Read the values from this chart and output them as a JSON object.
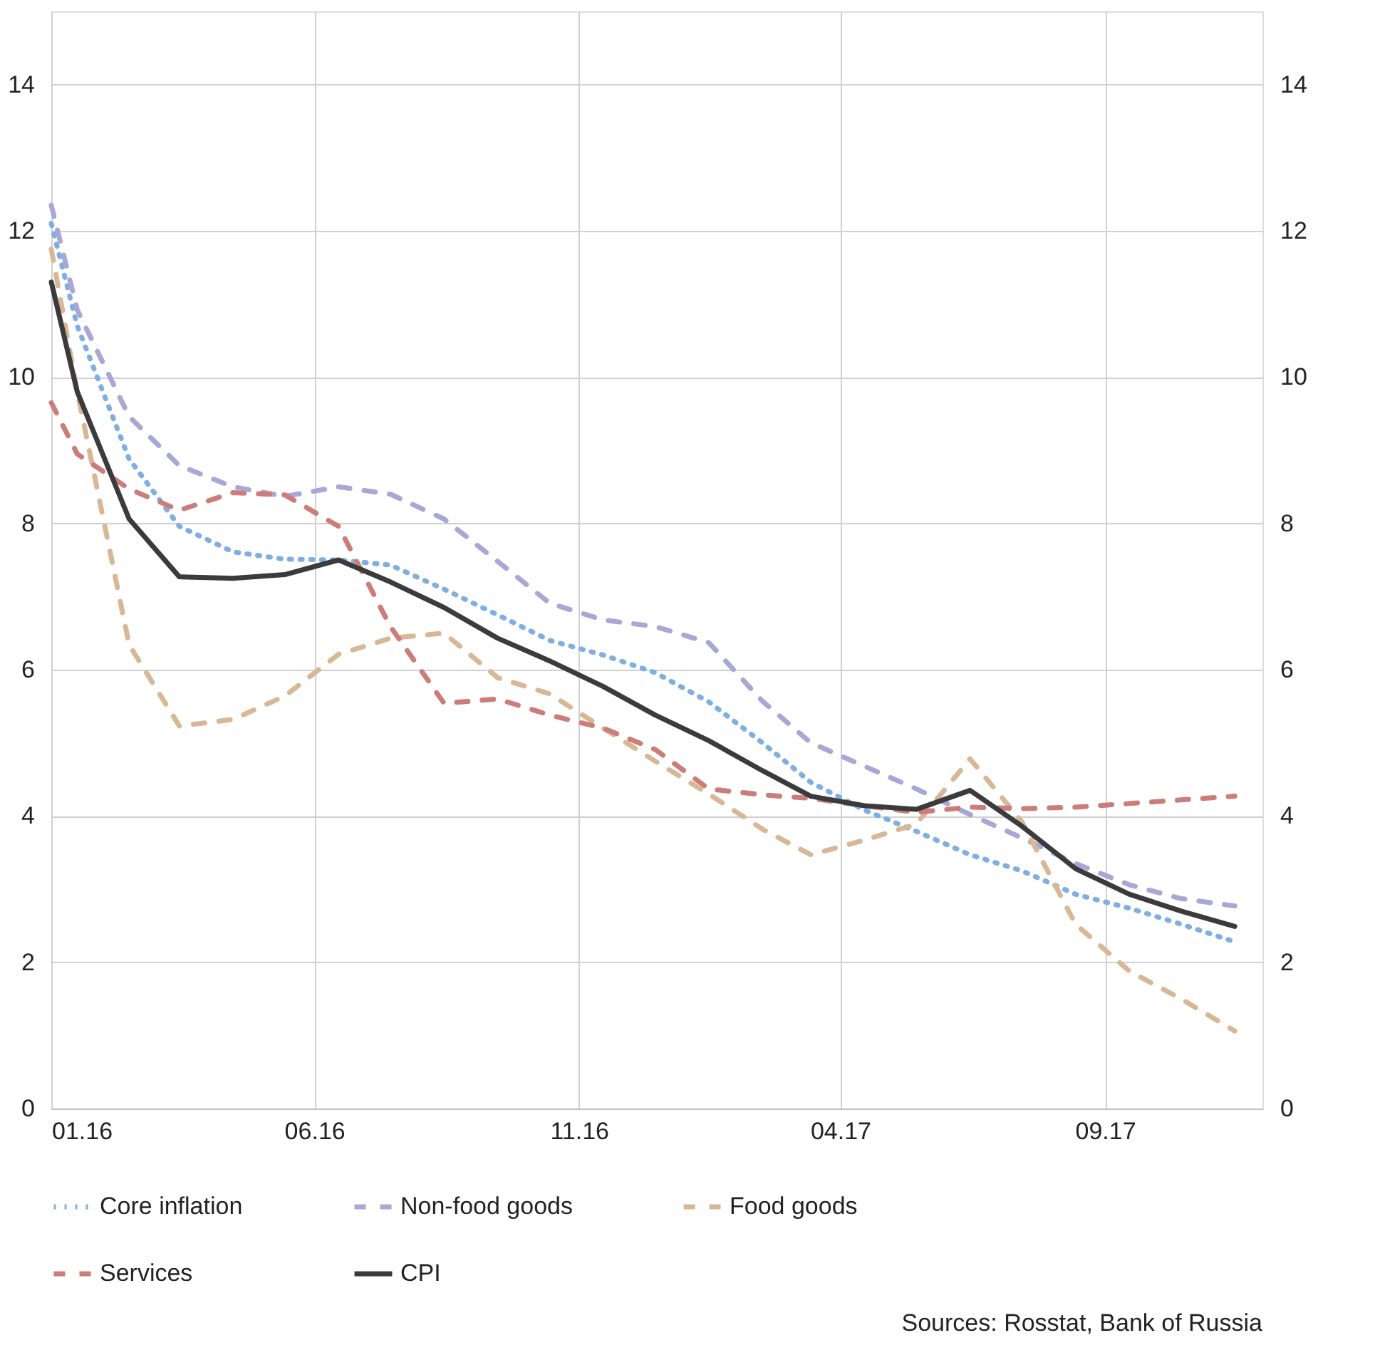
{
  "chart_data": {
    "type": "line",
    "x": [
      "2016-01-01",
      "2016-01-16",
      "2016-02-15",
      "2016-03-15",
      "2016-04-15",
      "2016-05-15",
      "2016-06-15",
      "2016-07-15",
      "2016-08-15",
      "2016-09-15",
      "2016-10-15",
      "2016-11-15",
      "2016-12-15",
      "2017-01-15",
      "2017-02-15",
      "2017-03-15",
      "2017-04-15",
      "2017-05-15",
      "2017-06-15",
      "2017-07-15",
      "2017-08-15",
      "2017-09-15",
      "2017-10-15",
      "2017-11-15"
    ],
    "series": [
      {
        "name": "Core inflation",
        "color": "#7fafe0",
        "line_style": "dotted",
        "values": [
          12.1,
          10.7,
          8.88,
          7.96,
          7.61,
          7.51,
          7.5,
          7.43,
          7.1,
          6.75,
          6.4,
          6.2,
          5.96,
          5.56,
          5.0,
          4.46,
          4.08,
          3.79,
          3.47,
          3.25,
          2.93,
          2.74,
          2.52,
          2.28
        ]
      },
      {
        "name": "Non-food goods",
        "color": "#aaa6d6",
        "line_style": "dashed",
        "values": [
          12.35,
          10.92,
          9.46,
          8.79,
          8.5,
          8.37,
          8.5,
          8.4,
          8.06,
          7.48,
          6.91,
          6.68,
          6.59,
          6.37,
          5.57,
          5.0,
          4.68,
          4.37,
          4.02,
          3.7,
          3.35,
          3.06,
          2.87,
          2.77
        ]
      },
      {
        "name": "Food goods",
        "color": "#d8b796",
        "line_style": "dashed",
        "values": [
          11.75,
          9.8,
          6.34,
          5.23,
          5.32,
          5.64,
          6.21,
          6.43,
          6.5,
          5.89,
          5.67,
          5.2,
          4.75,
          4.3,
          3.82,
          3.47,
          3.67,
          3.89,
          4.78,
          3.92,
          2.52,
          1.88,
          1.5,
          1.06
        ]
      },
      {
        "name": "Services",
        "color": "#cc7d7a",
        "line_style": "dashed",
        "values": [
          9.65,
          8.95,
          8.47,
          8.18,
          8.42,
          8.39,
          7.96,
          6.59,
          5.54,
          5.6,
          5.38,
          5.2,
          4.91,
          4.37,
          4.29,
          4.24,
          4.14,
          4.05,
          4.12,
          4.1,
          4.12,
          4.17,
          4.22,
          4.27
        ]
      },
      {
        "name": "CPI",
        "color": "#3b3b3d",
        "line_style": "solid",
        "values": [
          11.3,
          9.8,
          8.06,
          7.27,
          7.25,
          7.3,
          7.5,
          7.2,
          6.85,
          6.43,
          6.12,
          5.77,
          5.38,
          5.03,
          4.62,
          4.27,
          4.14,
          4.09,
          4.35,
          3.86,
          3.28,
          2.93,
          2.7,
          2.49
        ]
      }
    ],
    "xlim": [
      "2016-01-01",
      "2017-12-01"
    ],
    "xticks": [
      {
        "value": "2016-01-01",
        "label": "01.16"
      },
      {
        "value": "2016-06-01",
        "label": "06.16"
      },
      {
        "value": "2016-11-01",
        "label": "11.16"
      },
      {
        "value": "2017-04-01",
        "label": "04.17"
      },
      {
        "value": "2017-09-01",
        "label": "09.17"
      }
    ],
    "ylim": [
      0,
      15
    ],
    "yticks": [
      0,
      2,
      4,
      6,
      8,
      10,
      12,
      14
    ],
    "y2lim": [
      0,
      15
    ],
    "y2ticks": [
      0,
      2,
      4,
      6,
      8,
      10,
      12,
      14
    ],
    "grid": true,
    "legend": "bottom",
    "annotations": [
      "Sources: Rosstat, Bank of Russia"
    ]
  }
}
